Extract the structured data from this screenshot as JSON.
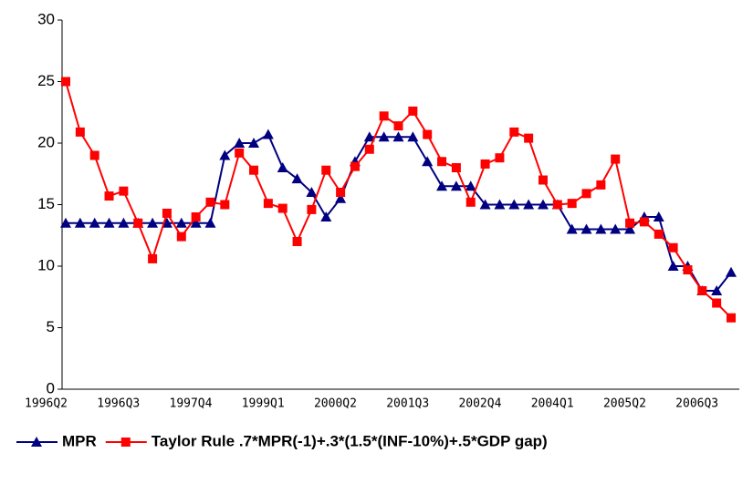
{
  "chart_data": {
    "type": "line",
    "categories": [
      "1996Q2",
      null,
      null,
      null,
      null,
      "1996Q3",
      null,
      null,
      null,
      null,
      "1997Q4",
      null,
      null,
      null,
      null,
      "1999Q1",
      null,
      null,
      null,
      null,
      "2000Q2",
      null,
      null,
      null,
      null,
      "2001Q3",
      null,
      null,
      null,
      null,
      "2002Q4",
      null,
      null,
      null,
      null,
      "2004Q1",
      null,
      null,
      null,
      null,
      "2005Q2",
      null,
      null,
      null,
      null,
      "2006Q3",
      null
    ],
    "series": [
      {
        "name": "MPR",
        "color": "#000080",
        "marker": "triangle",
        "values": [
          13.5,
          13.5,
          13.5,
          13.5,
          13.5,
          13.5,
          13.5,
          13.5,
          13.5,
          13.5,
          13.5,
          19,
          20,
          20,
          20.7,
          18,
          17.1,
          16,
          14,
          15.5,
          18.5,
          20.5,
          20.5,
          20.5,
          20.5,
          18.5,
          16.5,
          16.5,
          16.5,
          15,
          15,
          15,
          15,
          15,
          15,
          13,
          13,
          13,
          13,
          13,
          14,
          14,
          10,
          10,
          8,
          8,
          9.5
        ]
      },
      {
        "name": "Taylor Rule .7*MPR(-1)+.3*(1.5*(INF-10%)+.5*GDP gap)",
        "color": "#ff0000",
        "marker": "square",
        "values": [
          25,
          20.9,
          19,
          15.7,
          16.1,
          13.5,
          10.6,
          14.3,
          12.4,
          14,
          15.2,
          15,
          19.2,
          17.8,
          15.1,
          14.7,
          12,
          14.6,
          17.8,
          16,
          18.1,
          19.5,
          22.2,
          21.4,
          22.6,
          20.7,
          18.5,
          18,
          15.2,
          18.3,
          18.8,
          20.9,
          20.4,
          17,
          15,
          15.1,
          15.9,
          16.6,
          18.7,
          13.5,
          13.6,
          12.6,
          11.5,
          9.7,
          8,
          7,
          5.8
        ]
      }
    ],
    "ylim": [
      0,
      30
    ],
    "yticks": [
      0,
      5,
      10,
      15,
      20,
      25,
      30
    ],
    "legend": "bottom"
  }
}
